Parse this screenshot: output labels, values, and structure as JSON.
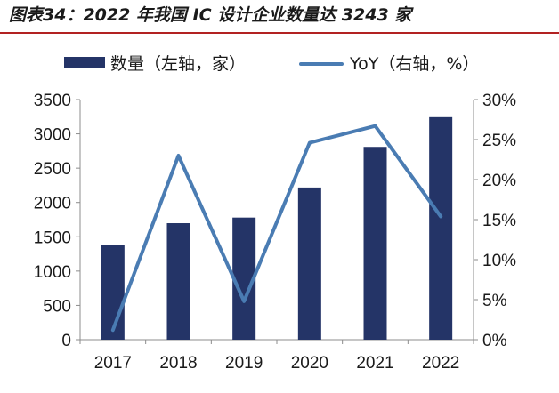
{
  "title": "图表34：2022 年我国 IC 设计企业数量达 3243 家",
  "colors": {
    "bar": "#243467",
    "line": "#4a7cb3",
    "title_rule": "#b22222",
    "axis": "#8c8c8c",
    "text": "#1a1a1a"
  },
  "chart_data": {
    "type": "bar",
    "title": "2022 年我国 IC 设计企业数量达 3243 家",
    "categories": [
      "2017",
      "2018",
      "2019",
      "2020",
      "2021",
      "2022"
    ],
    "series": [
      {
        "name": "数量（左轴，家）",
        "type": "bar",
        "axis": "left",
        "values": [
          1380,
          1698,
          1780,
          2218,
          2810,
          3243
        ]
      },
      {
        "name": "YoY（右轴，%）",
        "type": "line",
        "axis": "right",
        "values": [
          1.2,
          23.0,
          4.8,
          24.6,
          26.7,
          15.4
        ]
      }
    ],
    "y_left": {
      "ylim": [
        0,
        3500
      ],
      "ticks": [
        "0",
        "500",
        "1000",
        "1500",
        "2000",
        "2500",
        "3000",
        "3500"
      ]
    },
    "y_right": {
      "ylim": [
        0,
        30
      ],
      "ticks": [
        "0%",
        "5%",
        "10%",
        "15%",
        "20%",
        "25%",
        "30%"
      ]
    },
    "grid": false,
    "legend_position": "top"
  }
}
